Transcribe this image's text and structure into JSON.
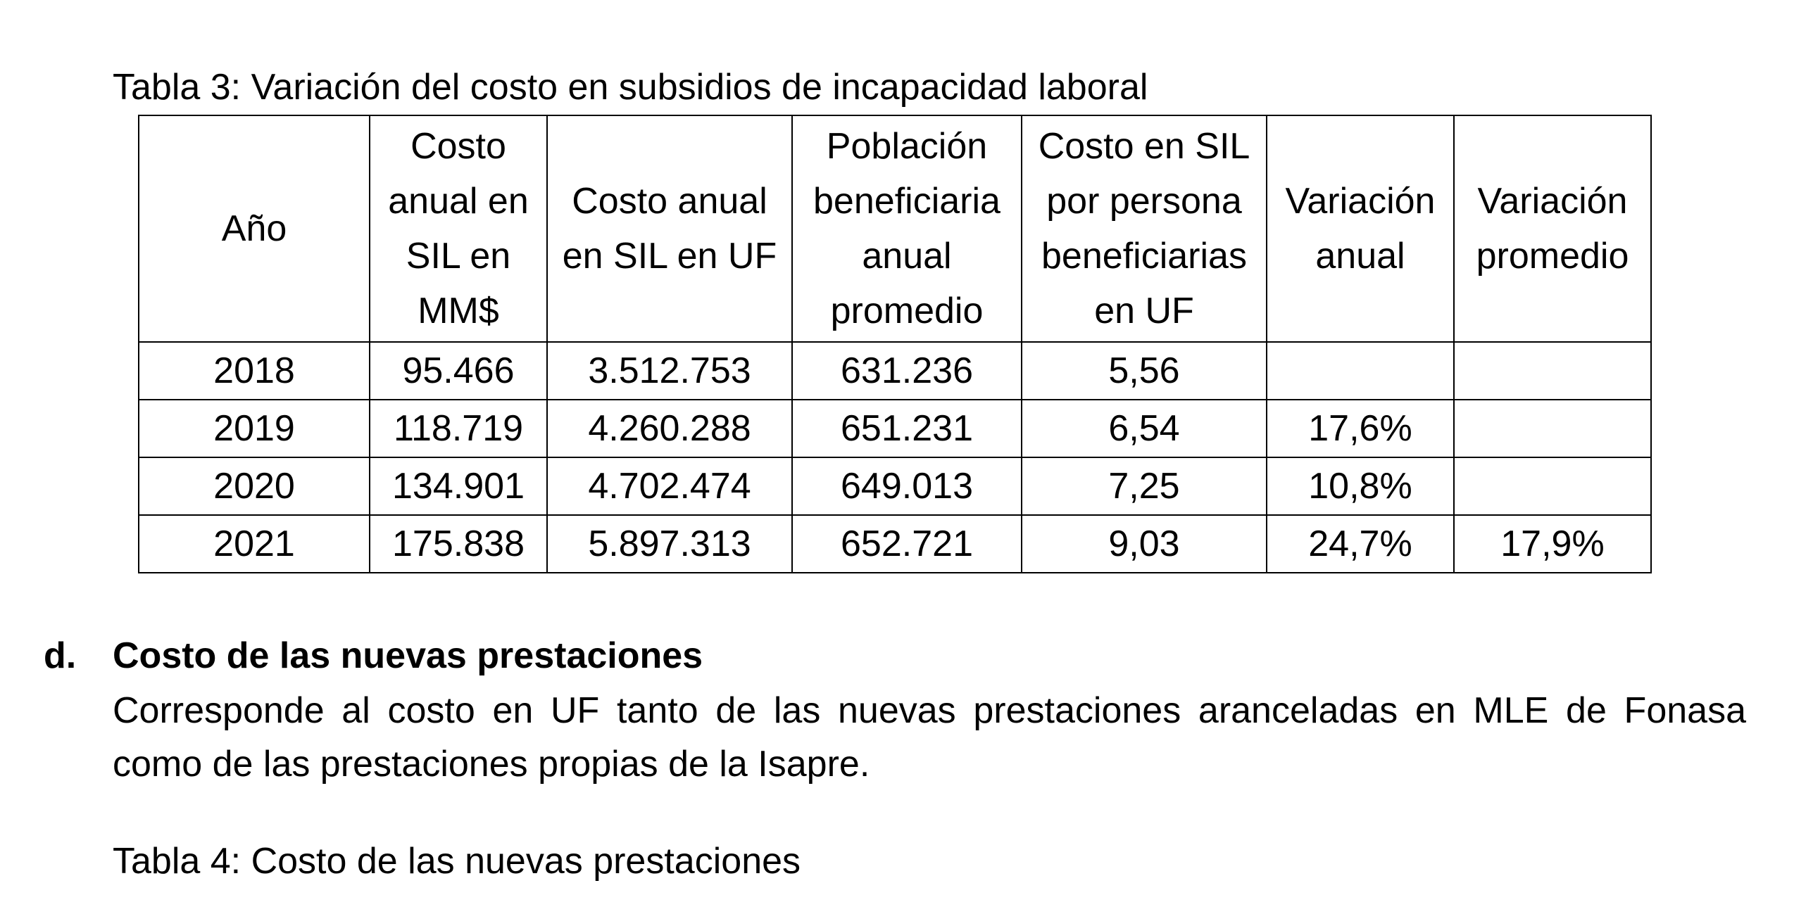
{
  "table3": {
    "caption": "Tabla 3: Variación del costo en subsidios de incapacidad laboral",
    "headers": [
      [
        "Año"
      ],
      [
        "Costo",
        "anual en",
        "SIL en",
        "MM$"
      ],
      [
        "Costo anual",
        "en SIL en UF"
      ],
      [
        "Población",
        "beneficiaria",
        "anual",
        "promedio"
      ],
      [
        "Costo en SIL",
        "por persona",
        "beneficiarias",
        "en UF"
      ],
      [
        "Variación",
        "anual"
      ],
      [
        "Variación",
        "promedio"
      ]
    ],
    "rows": [
      [
        "2018",
        "95.466",
        "3.512.753",
        "631.236",
        "5,56",
        "",
        ""
      ],
      [
        "2019",
        "118.719",
        "4.260.288",
        "651.231",
        "6,54",
        "17,6%",
        ""
      ],
      [
        "2020",
        "134.901",
        "4.702.474",
        "649.013",
        "7,25",
        "10,8%",
        ""
      ],
      [
        "2021",
        "175.838",
        "5.897.313",
        "652.721",
        "9,03",
        "24,7%",
        "17,9%"
      ]
    ]
  },
  "section_d": {
    "letter": "d.",
    "title": "Costo de las nuevas prestaciones",
    "paragraph_line1": "Corresponde al costo en UF tanto de las nuevas prestaciones aranceladas en MLE de Fonasa",
    "paragraph_line2": "como de las prestaciones propias de la Isapre."
  },
  "table4": {
    "caption": "Tabla 4: Costo de las nuevas prestaciones"
  }
}
